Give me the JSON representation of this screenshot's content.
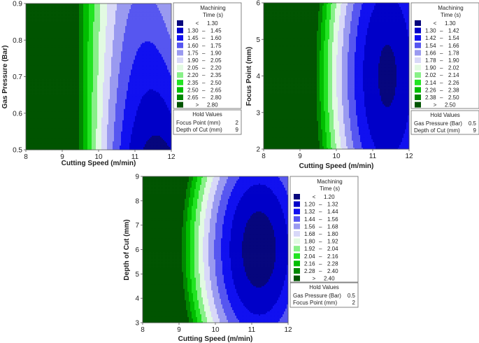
{
  "figure": {
    "description_none": ""
  },
  "chart_data": [
    {
      "type": "heatmap",
      "id": "p1",
      "xlabel": "Cutting Speed (m/min)",
      "ylabel": "Gas Pressure (Bar)",
      "xlim": [
        8,
        12
      ],
      "ylim": [
        0.5,
        0.9
      ],
      "xticks": [
        "8",
        "9",
        "10",
        "11",
        "12"
      ],
      "yticks": [
        "0.5",
        "0.6",
        "0.7",
        "0.8",
        "0.9"
      ],
      "legend_title": [
        "Machining",
        "Time (s)"
      ],
      "legend_entries": [
        {
          "lo": "<",
          "hi": "1.30",
          "color": "#06067d"
        },
        {
          "lo": "1.30",
          "hi": "1.45",
          "color": "#0000c8"
        },
        {
          "lo": "1.45",
          "hi": "1.60",
          "color": "#1010f0"
        },
        {
          "lo": "1.60",
          "hi": "1.75",
          "color": "#5656f0"
        },
        {
          "lo": "1.75",
          "hi": "1.90",
          "color": "#9a9af0"
        },
        {
          "lo": "1.90",
          "hi": "2.05",
          "color": "#d8d8f8"
        },
        {
          "lo": "2.05",
          "hi": "2.20",
          "color": "#e2fae2"
        },
        {
          "lo": "2.20",
          "hi": "2.35",
          "color": "#88f088"
        },
        {
          "lo": "2.35",
          "hi": "2.50",
          "color": "#22e422"
        },
        {
          "lo": "2.50",
          "hi": "2.65",
          "color": "#00be00"
        },
        {
          "lo": "2.65",
          "hi": "2.80",
          "color": "#008800"
        },
        {
          "lo": ">",
          "hi": "2.80",
          "color": "#005400"
        }
      ],
      "hold_title": "Hold Values",
      "hold_values": [
        {
          "name": "Focus Point (mm)",
          "value": "2"
        },
        {
          "name": "Depth of Cut (mm)",
          "value": "9"
        }
      ],
      "model": {
        "min_x": 11.6,
        "min_y": 0.5,
        "a": 0.34,
        "b": 0.0,
        "c": 1.2,
        "d": 0.0,
        "sharp": 10
      }
    },
    {
      "type": "heatmap",
      "id": "p2",
      "xlabel": "Cutting Speed (m/min)",
      "ylabel": "Focus Point (mm)",
      "xlim": [
        8,
        12
      ],
      "ylim": [
        2,
        6
      ],
      "xticks": [
        "8",
        "9",
        "10",
        "11",
        "12"
      ],
      "yticks": [
        "2",
        "3",
        "4",
        "5",
        "6"
      ],
      "legend_title": [
        "Machining",
        "Time (s)"
      ],
      "legend_entries": [
        {
          "lo": "<",
          "hi": "1.30",
          "color": "#06067d"
        },
        {
          "lo": "1.30",
          "hi": "1.42",
          "color": "#0000c8"
        },
        {
          "lo": "1.42",
          "hi": "1.54",
          "color": "#1010f0"
        },
        {
          "lo": "1.54",
          "hi": "1.66",
          "color": "#5656f0"
        },
        {
          "lo": "1.66",
          "hi": "1.78",
          "color": "#9a9af0"
        },
        {
          "lo": "1.78",
          "hi": "1.90",
          "color": "#d8d8f8"
        },
        {
          "lo": "1.90",
          "hi": "2.02",
          "color": "#e2fae2"
        },
        {
          "lo": "2.02",
          "hi": "2.14",
          "color": "#88f088"
        },
        {
          "lo": "2.14",
          "hi": "2.26",
          "color": "#22e422"
        },
        {
          "lo": "2.26",
          "hi": "2.38",
          "color": "#00be00"
        },
        {
          "lo": "2.38",
          "hi": "2.50",
          "color": "#008800"
        },
        {
          "lo": ">",
          "hi": "2.50",
          "color": "#005400"
        }
      ],
      "hold_title": "Hold Values",
      "hold_values": [
        {
          "name": "Gas Pressure (Bar)",
          "value": "0.5"
        },
        {
          "name": "Depth of Cut (mm)",
          "value": "9"
        }
      ],
      "model": {
        "min_x": 11.4,
        "min_y": 4.0,
        "a": 0.32,
        "b": 0.0045,
        "c": 1.28,
        "d": 0.0,
        "sharp": 1
      }
    },
    {
      "type": "heatmap",
      "id": "p3",
      "xlabel": "Cutting Speed (m/min)",
      "ylabel": "Depth of Cut (mm)",
      "xlim": [
        8,
        12
      ],
      "ylim": [
        3,
        9
      ],
      "xticks": [
        "8",
        "9",
        "10",
        "11",
        "12"
      ],
      "yticks": [
        "3",
        "4",
        "5",
        "6",
        "7",
        "8",
        "9"
      ],
      "legend_title": [
        "Machining",
        "Time (s)"
      ],
      "legend_entries": [
        {
          "lo": "<",
          "hi": "1.20",
          "color": "#06067d"
        },
        {
          "lo": "1.20",
          "hi": "1.32",
          "color": "#0000c8"
        },
        {
          "lo": "1.32",
          "hi": "1.44",
          "color": "#1010f0"
        },
        {
          "lo": "1.44",
          "hi": "1.56",
          "color": "#5656f0"
        },
        {
          "lo": "1.56",
          "hi": "1.68",
          "color": "#9a9af0"
        },
        {
          "lo": "1.68",
          "hi": "1.80",
          "color": "#d8d8f8"
        },
        {
          "lo": "1.80",
          "hi": "1.92",
          "color": "#e2fae2"
        },
        {
          "lo": "1.92",
          "hi": "2.04",
          "color": "#88f088"
        },
        {
          "lo": "2.04",
          "hi": "2.16",
          "color": "#22e422"
        },
        {
          "lo": "2.16",
          "hi": "2.28",
          "color": "#00be00"
        },
        {
          "lo": "2.28",
          "hi": "2.40",
          "color": "#008800"
        },
        {
          "lo": ">",
          "hi": "2.40",
          "color": "#005400"
        }
      ],
      "hold_title": "Hold Values",
      "hold_values": [
        {
          "name": "Gas Pressure (Bar)",
          "value": "0.5"
        },
        {
          "name": "Focus Point (mm)",
          "value": "2"
        }
      ],
      "model": {
        "min_x": 11.2,
        "min_y": 6.0,
        "a": 0.28,
        "b": 0.0022,
        "c": 1.12,
        "d": 0.0,
        "sharp": 1
      }
    }
  ]
}
